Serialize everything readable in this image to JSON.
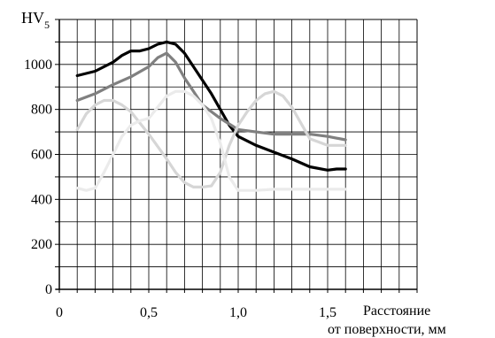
{
  "chart_data": {
    "type": "line",
    "ylabel": "HV",
    "ylabel_sub": "5",
    "xlabel_line1": "Расстояние",
    "xlabel_line2": "от поверхности, мм",
    "xlim": [
      0,
      2.0
    ],
    "ylim": [
      0,
      1200
    ],
    "grid": true,
    "x_ticks": [
      {
        "value": 0,
        "label": "0"
      },
      {
        "value": 0.5,
        "label": "0,5"
      },
      {
        "value": 1.0,
        "label": "1,0"
      },
      {
        "value": 1.5,
        "label": "1,5"
      }
    ],
    "y_ticks": [
      {
        "value": 0,
        "label": "0"
      },
      {
        "value": 200,
        "label": "200"
      },
      {
        "value": 400,
        "label": "400"
      },
      {
        "value": 600,
        "label": "600"
      },
      {
        "value": 800,
        "label": "800"
      },
      {
        "value": 1000,
        "label": "1000"
      }
    ],
    "series": [
      {
        "color": "#000000",
        "x": [
          0.1,
          0.2,
          0.3,
          0.35,
          0.4,
          0.45,
          0.5,
          0.55,
          0.6,
          0.65,
          0.7,
          0.75,
          0.8,
          0.85,
          0.9,
          0.95,
          1.0,
          1.1,
          1.2,
          1.3,
          1.4,
          1.5,
          1.55,
          1.6
        ],
        "y": [
          950,
          970,
          1010,
          1040,
          1060,
          1060,
          1070,
          1090,
          1100,
          1090,
          1050,
          990,
          930,
          870,
          800,
          730,
          680,
          640,
          610,
          580,
          545,
          530,
          535,
          535
        ]
      },
      {
        "color": "#808080",
        "x": [
          0.1,
          0.2,
          0.3,
          0.4,
          0.5,
          0.55,
          0.6,
          0.65,
          0.7,
          0.75,
          0.8,
          0.9,
          1.0,
          1.1,
          1.2,
          1.3,
          1.4,
          1.5,
          1.6
        ],
        "y": [
          840,
          870,
          910,
          945,
          990,
          1030,
          1050,
          1010,
          940,
          880,
          820,
          760,
          710,
          700,
          690,
          690,
          690,
          680,
          665
        ]
      },
      {
        "color": "#d6d6d6",
        "x": [
          0.1,
          0.15,
          0.2,
          0.25,
          0.3,
          0.35,
          0.4,
          0.5,
          0.6,
          0.65,
          0.7,
          0.75,
          0.8,
          0.85,
          0.9,
          0.95,
          1.0,
          1.05,
          1.1,
          1.15,
          1.2,
          1.25,
          1.3,
          1.35,
          1.4,
          1.5,
          1.6
        ],
        "y": [
          710,
          780,
          820,
          840,
          840,
          820,
          790,
          690,
          580,
          520,
          475,
          455,
          455,
          460,
          520,
          640,
          730,
          790,
          840,
          870,
          880,
          860,
          810,
          740,
          670,
          640,
          640
        ]
      },
      {
        "color": "#ebebeb",
        "x": [
          0.1,
          0.15,
          0.2,
          0.25,
          0.3,
          0.35,
          0.4,
          0.45,
          0.5,
          0.55,
          0.6,
          0.65,
          0.7,
          0.75,
          0.8,
          0.85,
          0.9,
          0.95,
          1.0,
          1.1,
          1.2,
          1.3,
          1.4,
          1.5,
          1.6
        ],
        "y": [
          450,
          440,
          450,
          520,
          600,
          680,
          730,
          750,
          760,
          810,
          860,
          880,
          880,
          860,
          820,
          760,
          650,
          500,
          440,
          440,
          445,
          445,
          445,
          445,
          445
        ]
      }
    ]
  }
}
